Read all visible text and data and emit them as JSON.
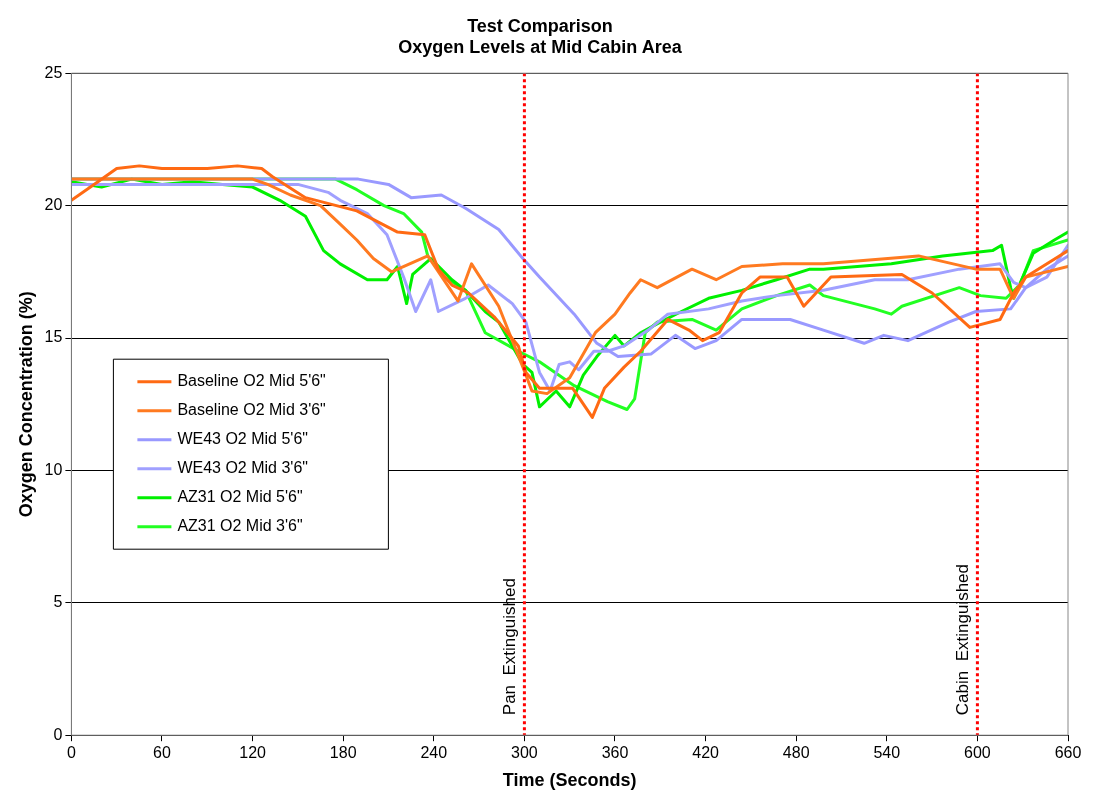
{
  "chart_data": {
    "type": "line",
    "title": [
      "Test Comparison",
      "Oxygen Levels at Mid Cabin Area"
    ],
    "xlabel": "Time (Seconds)",
    "ylabel": "Oxygen Concentration (%)",
    "xlim": [
      0,
      660
    ],
    "ylim": [
      0,
      25
    ],
    "xticks": [
      0,
      60,
      120,
      180,
      240,
      300,
      360,
      420,
      480,
      540,
      600,
      660
    ],
    "yticks": [
      0,
      5,
      10,
      15,
      20,
      25
    ],
    "grid": "y",
    "legend": "left",
    "marker": "none",
    "line_style": "solid",
    "series": [
      {
        "name": "Baseline O2 Mid 5'6\"",
        "color": "#ff6a13",
        "x": [
          0,
          15,
          30,
          45,
          60,
          90,
          110,
          126,
          133,
          155,
          189,
          216,
          234,
          243,
          252,
          263,
          280,
          296,
          301,
          310,
          332,
          345,
          353,
          366,
          377,
          395,
          409,
          418,
          429,
          444,
          456,
          474,
          485,
          503,
          550,
          570,
          595,
          615,
          624,
          632,
          660
        ],
        "values": [
          20.2,
          20.8,
          21.4,
          21.5,
          21.4,
          21.4,
          21.5,
          21.4,
          21.1,
          20.3,
          19.8,
          19.0,
          18.9,
          17.6,
          17.0,
          16.7,
          15.8,
          14.7,
          13.7,
          13.1,
          13.1,
          12.0,
          13.1,
          13.9,
          14.5,
          15.7,
          15.3,
          14.9,
          15.2,
          16.7,
          17.3,
          17.3,
          16.2,
          17.3,
          17.4,
          16.7,
          15.4,
          15.7,
          16.7,
          17.3,
          18.3
        ]
      },
      {
        "name": "Baseline O2 Mid 3'6\"",
        "color": "#ff7a20",
        "x": [
          0,
          60,
          120,
          130,
          145,
          165,
          178,
          189,
          200,
          212,
          236,
          256,
          265,
          283,
          292,
          299,
          305,
          315,
          330,
          347,
          360,
          370,
          377,
          388,
          411,
          427,
          444,
          471,
          498,
          561,
          599,
          615,
          624,
          632,
          660
        ],
        "values": [
          21.0,
          21.0,
          21.0,
          20.8,
          20.4,
          20.0,
          19.3,
          18.7,
          18.0,
          17.5,
          18.1,
          16.4,
          17.8,
          16.2,
          14.9,
          13.9,
          13.0,
          12.9,
          13.5,
          15.2,
          15.9,
          16.7,
          17.2,
          16.9,
          17.6,
          17.2,
          17.7,
          17.8,
          17.8,
          18.1,
          17.6,
          17.6,
          16.5,
          17.3,
          17.7
        ]
      },
      {
        "name": "WE43 O2 Mid 5'6\"",
        "color": "#9999ff",
        "x": [
          0,
          60,
          120,
          190,
          210,
          225,
          245,
          261,
          283,
          299,
          310,
          333,
          348,
          362,
          384,
          400,
          413,
          427,
          444,
          467,
          476,
          498,
          525,
          538,
          554,
          581,
          599,
          622,
          632,
          646,
          660
        ],
        "values": [
          21.0,
          21.0,
          21.0,
          21.0,
          20.8,
          20.3,
          20.4,
          19.9,
          19.1,
          18.0,
          17.3,
          15.9,
          14.8,
          14.3,
          14.4,
          15.1,
          14.6,
          14.9,
          15.7,
          15.7,
          15.7,
          15.3,
          14.8,
          15.1,
          14.9,
          15.6,
          16.0,
          16.1,
          16.9,
          17.6,
          18.1
        ]
      },
      {
        "name": "WE43 O2 Mid 3'6\"",
        "color": "#a0a0ff",
        "x": [
          0,
          60,
          120,
          150,
          170,
          178,
          196,
          209,
          220,
          228,
          238,
          243,
          261,
          276,
          292,
          301,
          310,
          317,
          323,
          330,
          336,
          346,
          355,
          366,
          382,
          395,
          422,
          444,
          467,
          498,
          532,
          554,
          588,
          615,
          624,
          632,
          646,
          660
        ],
        "values": [
          20.8,
          20.8,
          20.8,
          20.8,
          20.5,
          20.2,
          19.7,
          18.9,
          17.3,
          16.0,
          17.2,
          16.0,
          16.5,
          17.0,
          16.3,
          15.6,
          13.7,
          13.0,
          14.0,
          14.1,
          13.8,
          14.5,
          14.5,
          14.7,
          15.3,
          15.9,
          16.1,
          16.4,
          16.6,
          16.8,
          17.2,
          17.2,
          17.6,
          17.8,
          17.1,
          16.9,
          17.3,
          18.5
        ]
      },
      {
        "name": "AZ31 O2 Mid 5'6\"",
        "color": "#00f000",
        "x": [
          0,
          20,
          40,
          60,
          80,
          100,
          120,
          138,
          155,
          167,
          178,
          196,
          209,
          216,
          222,
          226,
          238,
          252,
          261,
          274,
          283,
          299,
          305,
          310,
          321,
          330,
          339,
          348,
          360,
          366,
          377,
          390,
          404,
          422,
          444,
          467,
          489,
          498,
          543,
          577,
          610,
          616,
          622,
          624,
          637,
          651,
          660
        ],
        "values": [
          20.9,
          20.7,
          21.0,
          20.8,
          20.9,
          20.8,
          20.7,
          20.2,
          19.6,
          18.3,
          17.8,
          17.2,
          17.2,
          17.7,
          16.3,
          17.4,
          18.0,
          17.2,
          16.8,
          16.0,
          15.6,
          14.0,
          13.7,
          12.4,
          13.0,
          12.4,
          13.6,
          14.3,
          15.1,
          14.7,
          15.2,
          15.6,
          16.0,
          16.5,
          16.8,
          17.2,
          17.6,
          17.6,
          17.8,
          18.1,
          18.3,
          18.5,
          16.9,
          16.5,
          18.2,
          18.7,
          19.0
        ]
      },
      {
        "name": "AZ31 O2 Mid 3'6\"",
        "color": "#22ff22",
        "x": [
          0,
          60,
          120,
          175,
          189,
          207,
          220,
          232,
          236,
          247,
          261,
          274,
          296,
          310,
          333,
          355,
          368,
          373,
          380,
          388,
          411,
          427,
          444,
          467,
          489,
          498,
          532,
          543,
          550,
          588,
          602,
          619,
          628,
          637,
          660
        ],
        "values": [
          21.0,
          21.0,
          21.0,
          21.0,
          20.6,
          20.0,
          19.7,
          19.0,
          18.1,
          17.3,
          16.8,
          15.2,
          14.5,
          14.1,
          13.2,
          12.6,
          12.3,
          12.7,
          15.2,
          15.6,
          15.7,
          15.3,
          16.1,
          16.6,
          17.0,
          16.6,
          16.1,
          15.9,
          16.2,
          16.9,
          16.6,
          16.5,
          17.0,
          18.3,
          18.7
        ]
      }
    ],
    "ref_lines": [
      {
        "axis": "x",
        "value": 300,
        "label": "Pan  Extinguished",
        "color": "#ff0000",
        "line_style": "dotted"
      },
      {
        "axis": "x",
        "value": 600,
        "label": "Cabin  Extinguished",
        "color": "#ff0000",
        "line_style": "dotted"
      }
    ]
  }
}
